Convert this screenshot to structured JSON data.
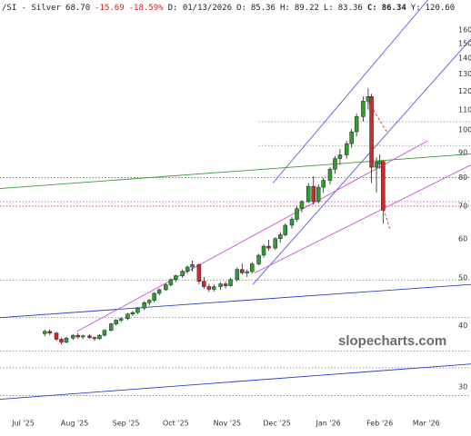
{
  "chart_data": {
    "type": "candlestick",
    "header": [
      {
        "text": "/SI - Silver",
        "color": "#222"
      },
      {
        "text": "68.70",
        "color": "#222"
      },
      {
        "text": "-15.69",
        "color": "#d62020"
      },
      {
        "text": "-18.59%",
        "color": "#d62020"
      },
      {
        "text": "D: 01/13/2026",
        "color": "#222"
      },
      {
        "text": "O:",
        "color": "#222"
      },
      {
        "text": "85.36",
        "color": "#222"
      },
      {
        "text": "H:",
        "color": "#222"
      },
      {
        "text": "89.22",
        "color": "#222"
      },
      {
        "text": "L:",
        "color": "#222"
      },
      {
        "text": "83.36",
        "color": "#222"
      },
      {
        "text": "C:",
        "color": "#222",
        "bold": true
      },
      {
        "text": "86.34",
        "color": "#222",
        "bold": true
      },
      {
        "text": "Y:",
        "color": "#222"
      },
      {
        "text": "120.60",
        "color": "#222"
      }
    ],
    "watermark": "slopecharts.com",
    "log_scale": true,
    "up_color": "#2ca02c",
    "down_color": "#d62728",
    "xlim": [
      -14,
      270
    ],
    "ylim": [
      26.5,
      184
    ],
    "xticks": [
      {
        "value": 0,
        "label": "Jul '25"
      },
      {
        "value": 31,
        "label": "Aug '25"
      },
      {
        "value": 62,
        "label": "Sep '25"
      },
      {
        "value": 92,
        "label": "Oct '25"
      },
      {
        "value": 123,
        "label": "Nov '25"
      },
      {
        "value": 153,
        "label": "Dec '25"
      },
      {
        "value": 184,
        "label": "Jan '26"
      },
      {
        "value": 215,
        "label": "Feb '26"
      },
      {
        "value": 243,
        "label": "Mar '26"
      }
    ],
    "yticks": [
      30,
      40,
      50,
      60,
      70,
      80,
      90,
      100,
      110,
      120,
      130,
      140,
      150,
      160
    ],
    "x": [
      13,
      16,
      20,
      23,
      26,
      30,
      33,
      36,
      40,
      43,
      46,
      49,
      53,
      56,
      59,
      63,
      66,
      69,
      73,
      76,
      79,
      82,
      86,
      89,
      92,
      96,
      99,
      102,
      106,
      109,
      112,
      115,
      119,
      122,
      125,
      129,
      132,
      135,
      138,
      142,
      145,
      148,
      152,
      155,
      158,
      162,
      165,
      168,
      172,
      175,
      178,
      181,
      185,
      188,
      191,
      195,
      198,
      201,
      205,
      208,
      210,
      213,
      215,
      217
    ],
    "open": [
      38.5,
      38.9,
      38.6,
      37.5,
      37.0,
      37.7,
      38.2,
      37.9,
      38.1,
      37.8,
      37.6,
      38.2,
      39.1,
      40.3,
      41.0,
      41.3,
      42.2,
      42.5,
      43.4,
      44.5,
      45.0,
      46.5,
      47.3,
      48.4,
      49.6,
      50.5,
      51.6,
      52.6,
      53.2,
      49.2,
      48.0,
      47.4,
      48.0,
      48.6,
      48.2,
      49.6,
      52.0,
      51.2,
      51.5,
      53.4,
      55.6,
      58.0,
      57.5,
      60.1,
      61.2,
      64.0,
      65.8,
      69.2,
      71.5,
      76.8,
      71.5,
      76.5,
      79.0,
      83.2,
      87.5,
      89.0,
      93.8,
      99.2,
      106.5,
      114.5,
      117.0,
      84.0,
      85.36,
      86.3
    ],
    "high": [
      39.2,
      39.3,
      38.8,
      37.8,
      37.9,
      38.4,
      38.6,
      38.3,
      38.4,
      38.0,
      38.4,
      39.3,
      40.5,
      41.2,
      41.6,
      42.4,
      42.8,
      43.6,
      44.8,
      45.3,
      46.8,
      47.6,
      48.8,
      49.9,
      50.8,
      52.0,
      53.0,
      54.2,
      53.5,
      50.2,
      48.6,
      48.5,
      49.0,
      49.2,
      50.0,
      52.5,
      53.5,
      52.0,
      53.8,
      56.0,
      58.5,
      59.8,
      60.5,
      62.0,
      64.5,
      66.5,
      70.0,
      72.0,
      78.0,
      80.5,
      77.5,
      80.0,
      84.0,
      88.5,
      91.5,
      95.0,
      100.5,
      108.0,
      117.0,
      121.6,
      118.5,
      88.0,
      89.22,
      86.8
    ],
    "low": [
      38.0,
      38.2,
      37.2,
      36.6,
      36.8,
      37.4,
      37.6,
      37.5,
      37.6,
      37.2,
      37.4,
      38.0,
      38.9,
      40.0,
      40.6,
      41.0,
      41.8,
      42.2,
      43.0,
      43.9,
      44.6,
      46.0,
      47.0,
      48.0,
      49.0,
      50.0,
      51.0,
      51.5,
      48.5,
      47.5,
      46.8,
      46.9,
      47.3,
      47.6,
      48.0,
      49.2,
      50.8,
      50.2,
      51.0,
      53.0,
      55.0,
      56.8,
      57.0,
      59.0,
      60.8,
      63.0,
      65.0,
      68.0,
      71.0,
      70.5,
      70.8,
      74.5,
      77.5,
      81.5,
      85.0,
      87.5,
      92.0,
      97.0,
      104.0,
      110.0,
      78.0,
      74.5,
      83.36,
      64.5
    ],
    "close": [
      38.9,
      38.6,
      37.5,
      37.0,
      37.7,
      38.2,
      37.9,
      38.1,
      37.8,
      37.6,
      38.2,
      39.1,
      40.3,
      41.0,
      41.3,
      42.2,
      42.5,
      43.4,
      44.5,
      45.0,
      46.5,
      47.3,
      48.4,
      49.6,
      50.5,
      51.6,
      52.6,
      53.2,
      49.2,
      48.0,
      47.4,
      48.0,
      48.6,
      48.2,
      49.6,
      52.0,
      51.2,
      51.5,
      53.4,
      55.6,
      58.0,
      57.5,
      60.1,
      61.2,
      64.0,
      65.8,
      69.2,
      71.5,
      76.8,
      71.5,
      76.5,
      79.0,
      83.2,
      87.5,
      89.0,
      93.8,
      99.2,
      106.5,
      114.5,
      117.0,
      84.0,
      86.0,
      86.34,
      68.7
    ],
    "trendlines": [
      {
        "x": [
          138.5,
          270.5
        ],
        "y": [
          48.5,
          154
        ],
        "color": "#5a5adf"
      },
      {
        "x": [
          150.6,
          244
        ],
        "y": [
          78,
          184
        ],
        "color": "#5a5adf"
      },
      {
        "x": [
          -14.3,
          270.5
        ],
        "y": [
          41.5,
          48.5
        ],
        "color": "#2b3fc9"
      },
      {
        "x": [
          -14.3,
          270.5
        ],
        "y": [
          28.3,
          33.4
        ],
        "color": "#2b3fc9"
      },
      {
        "x": [
          -14.3,
          270.5
        ],
        "y": [
          76,
          89.4
        ],
        "color": "#3a9a3a"
      },
      {
        "x": [
          32.4,
          244
        ],
        "y": [
          38.9,
          95.1
        ],
        "color": "#c94fd6"
      },
      {
        "x": [
          139.6,
          270.5
        ],
        "y": [
          51.2,
          85.1
        ],
        "color": "#c94fd6"
      },
      {
        "x": [
          208.3,
          219.3
        ],
        "y": [
          114,
          99
        ],
        "color": "#e03030",
        "dash": true
      },
      {
        "x": [
          216.5,
          221
        ],
        "y": [
          70.5,
          63
        ],
        "color": "#e03030",
        "dash": true
      }
    ],
    "levels": [
      {
        "value": 104,
        "color": "#888",
        "from": 142
      },
      {
        "value": 93,
        "color": "#888",
        "from": 142
      },
      {
        "value": 80,
        "color": "#3a9a3a",
        "from": -14
      },
      {
        "value": 71.5,
        "color": "#c94fd6",
        "from": -14
      },
      {
        "value": 70,
        "color": "#e03030",
        "from": -14
      },
      {
        "value": 49.5,
        "color": "#888",
        "from": -14
      },
      {
        "value": 41.5,
        "color": "#888",
        "from": -14
      },
      {
        "value": 35.5,
        "color": "#888",
        "from": -14
      },
      {
        "value": 32.8,
        "color": "#888",
        "from": -14
      },
      {
        "value": 28.8,
        "color": "#c94fd6",
        "from": -14
      }
    ]
  }
}
